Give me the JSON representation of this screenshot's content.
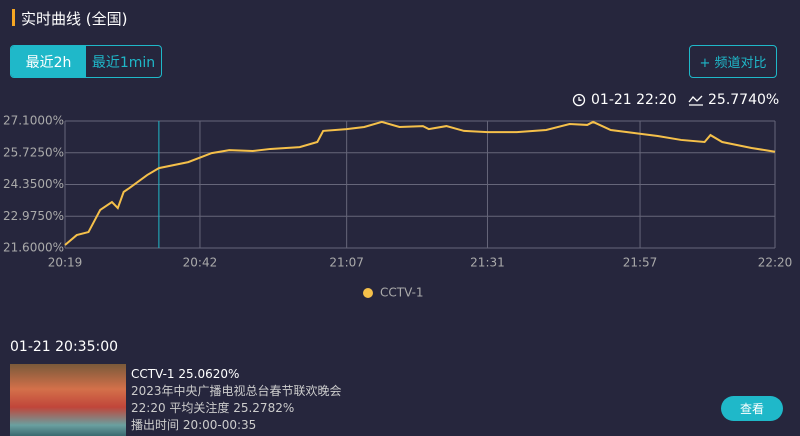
{
  "header": {
    "title": "实时曲线 (全国)"
  },
  "tabs": [
    "最近2h",
    "最近1min"
  ],
  "compare_button": "+ 频道对比",
  "status": {
    "time": "01-21 22:20",
    "value": "25.7740%"
  },
  "chart_data": {
    "type": "line",
    "x": [
      "20:19",
      "20:21",
      "20:23",
      "20:25",
      "20:27",
      "20:28",
      "20:29",
      "20:30",
      "20:33",
      "20:35",
      "20:40",
      "20:44",
      "20:47",
      "20:51",
      "20:54",
      "20:59",
      "21:02",
      "21:03",
      "21:07",
      "21:10",
      "21:13",
      "21:16",
      "21:20",
      "21:21",
      "21:24",
      "21:27",
      "21:31",
      "21:36",
      "21:41",
      "21:45",
      "21:48",
      "21:49",
      "21:52",
      "21:56",
      "22:00",
      "22:04",
      "22:08",
      "22:09",
      "22:11",
      "22:16",
      "22:20"
    ],
    "series": [
      {
        "name": "CCTV-1",
        "color": "#f5c04a",
        "values": [
          21.73,
          22.16,
          22.29,
          23.25,
          23.59,
          23.33,
          24.03,
          24.2,
          24.76,
          25.06,
          25.32,
          25.71,
          25.84,
          25.8,
          25.89,
          25.97,
          26.19,
          26.67,
          26.75,
          26.84,
          27.06,
          26.84,
          26.88,
          26.75,
          26.88,
          26.67,
          26.62,
          26.62,
          26.71,
          26.97,
          26.93,
          27.06,
          26.71,
          26.58,
          26.45,
          26.28,
          26.19,
          26.49,
          26.19,
          25.93,
          25.77
        ]
      }
    ],
    "xlim": [
      "20:19",
      "22:20"
    ],
    "xticks": [
      "20:19",
      "20:42",
      "21:07",
      "21:31",
      "21:57",
      "22:20"
    ],
    "ylim": [
      21.6,
      27.1
    ],
    "yticks": [
      {
        "value": 21.6,
        "label": "21.6000%"
      },
      {
        "value": 22.975,
        "label": "22.9750%"
      },
      {
        "value": 24.35,
        "label": "24.3500%"
      },
      {
        "value": 25.725,
        "label": "25.7250%"
      },
      {
        "value": 27.1,
        "label": "27.1000%"
      }
    ],
    "grid": true
  },
  "info": {
    "time": "01-21 20:35:00",
    "channel": "CCTV-1 25.0620%",
    "program": "2023年中央广播电视总台春节联欢晚会",
    "average": "22:20 平均关注度 25.2782%",
    "airtime": "播出时间 20:00-00:35",
    "button": "查看"
  }
}
